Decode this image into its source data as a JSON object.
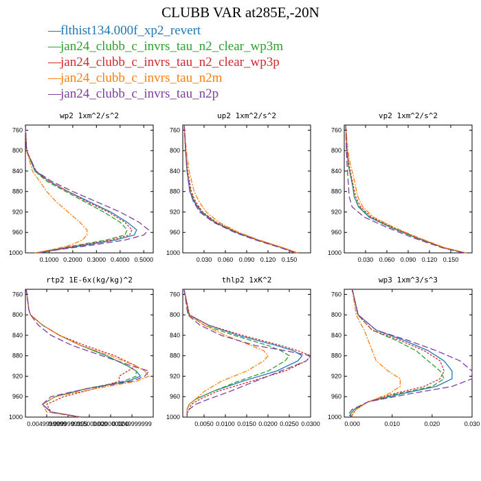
{
  "figure": {
    "title": "CLUBB VAR at285E,-20N",
    "legend": [
      {
        "name": "flthist134.000f_xp2_revert",
        "color": "#1f77b4",
        "dash": ""
      },
      {
        "name": "jan24_clubb_c_invrs_tau_n2_clear_wp3m",
        "color": "#2ca02c",
        "dash": "7,3"
      },
      {
        "name": "jan24_clubb_c_invrs_tau_n2_clear_wp3p",
        "color": "#d62728",
        "dash": "3,2"
      },
      {
        "name": "jan24_clubb_c_invrs_tau_n2m",
        "color": "#ff7f0e",
        "dash": "7,2,2,2"
      },
      {
        "name": "jan24_clubb_c_invrs_tau_n2p",
        "color": "#7b3fa0",
        "dash": "9,4"
      }
    ]
  },
  "chart_data": [
    {
      "type": "line",
      "title": "wp2  1xm^2/s^2",
      "xlim": [
        0,
        0.54
      ],
      "ylim": [
        1000,
        750
      ],
      "xticks": [
        "0.1000",
        "0.2000",
        "0.3000",
        "0.4000",
        "0.5000"
      ],
      "xtick_values": [
        0.1,
        0.2,
        0.3,
        0.4,
        0.5
      ],
      "yticks": [
        760,
        800,
        840,
        880,
        920,
        960,
        1000
      ],
      "y": [
        750,
        800,
        840,
        860,
        880,
        900,
        920,
        940,
        955,
        965,
        975,
        985,
        993,
        1000
      ],
      "series": [
        {
          "name": "flthist134.000f_xp2_revert",
          "values": [
            0,
            0.005,
            0.04,
            0.1,
            0.18,
            0.27,
            0.36,
            0.43,
            0.47,
            0.46,
            0.38,
            0.25,
            0.14,
            0.06
          ]
        },
        {
          "name": "jan24_clubb_c_invrs_tau_n2_clear_wp3m",
          "values": [
            0,
            0.005,
            0.04,
            0.09,
            0.17,
            0.25,
            0.33,
            0.4,
            0.43,
            0.42,
            0.34,
            0.22,
            0.12,
            0.05
          ]
        },
        {
          "name": "jan24_clubb_c_invrs_tau_n2_clear_wp3p",
          "values": [
            0,
            0.005,
            0.045,
            0.1,
            0.18,
            0.26,
            0.35,
            0.42,
            0.45,
            0.44,
            0.36,
            0.23,
            0.13,
            0.05
          ]
        },
        {
          "name": "jan24_clubb_c_invrs_tau_n2m",
          "values": [
            0,
            0.005,
            0.03,
            0.06,
            0.09,
            0.13,
            0.18,
            0.23,
            0.26,
            0.26,
            0.24,
            0.19,
            0.12,
            0.04
          ]
        },
        {
          "name": "jan24_clubb_c_invrs_tau_n2p",
          "values": [
            0,
            0.005,
            0.045,
            0.11,
            0.2,
            0.3,
            0.4,
            0.48,
            0.52,
            0.5,
            0.42,
            0.28,
            0.15,
            0.06
          ]
        }
      ]
    },
    {
      "type": "line",
      "title": "up2  1xm^2/s^2",
      "xlim": [
        0,
        0.18
      ],
      "ylim": [
        1000,
        750
      ],
      "xticks": [
        "0.030",
        "0.060",
        "0.090",
        "0.120",
        "0.150"
      ],
      "xtick_values": [
        0.03,
        0.06,
        0.09,
        0.12,
        0.15
      ],
      "yticks": [
        760,
        800,
        840,
        880,
        920,
        960,
        1000
      ],
      "y": [
        750,
        800,
        840,
        880,
        900,
        920,
        940,
        960,
        975,
        990,
        1000
      ],
      "series": [
        {
          "name": "flthist134.000f_xp2_revert",
          "values": [
            0.002,
            0.004,
            0.006,
            0.01,
            0.016,
            0.026,
            0.045,
            0.075,
            0.105,
            0.14,
            0.16
          ]
        },
        {
          "name": "jan24_clubb_c_invrs_tau_n2_clear_wp3m",
          "values": [
            0.002,
            0.004,
            0.006,
            0.011,
            0.017,
            0.027,
            0.046,
            0.076,
            0.106,
            0.14,
            0.16
          ]
        },
        {
          "name": "jan24_clubb_c_invrs_tau_n2_clear_wp3p",
          "values": [
            0.002,
            0.004,
            0.007,
            0.012,
            0.018,
            0.028,
            0.047,
            0.077,
            0.107,
            0.141,
            0.161
          ]
        },
        {
          "name": "jan24_clubb_c_invrs_tau_n2m",
          "values": [
            0.002,
            0.005,
            0.009,
            0.016,
            0.023,
            0.033,
            0.051,
            0.079,
            0.108,
            0.142,
            0.162
          ]
        },
        {
          "name": "jan24_clubb_c_invrs_tau_n2p",
          "values": [
            0.002,
            0.004,
            0.006,
            0.01,
            0.015,
            0.024,
            0.043,
            0.073,
            0.103,
            0.138,
            0.158
          ]
        }
      ]
    },
    {
      "type": "line",
      "title": "vp2  1xm^2/s^2",
      "xlim": [
        0,
        0.18
      ],
      "ylim": [
        1000,
        750
      ],
      "xticks": [
        "0.030",
        "0.060",
        "0.090",
        "0.120",
        "0.150"
      ],
      "xtick_values": [
        0.03,
        0.06,
        0.09,
        0.12,
        0.15
      ],
      "yticks": [
        760,
        800,
        840,
        880,
        920,
        960,
        1000
      ],
      "y": [
        750,
        800,
        830,
        850,
        870,
        890,
        910,
        930,
        950,
        970,
        990,
        1000
      ],
      "series": [
        {
          "name": "flthist134.000f_xp2_revert",
          "values": [
            0.002,
            0.004,
            0.006,
            0.009,
            0.012,
            0.014,
            0.02,
            0.035,
            0.065,
            0.1,
            0.14,
            0.17
          ]
        },
        {
          "name": "jan24_clubb_c_invrs_tau_n2_clear_wp3m",
          "values": [
            0.002,
            0.004,
            0.006,
            0.009,
            0.012,
            0.014,
            0.021,
            0.036,
            0.066,
            0.101,
            0.14,
            0.17
          ]
        },
        {
          "name": "jan24_clubb_c_invrs_tau_n2_clear_wp3p",
          "values": [
            0.002,
            0.004,
            0.007,
            0.01,
            0.013,
            0.016,
            0.023,
            0.038,
            0.068,
            0.102,
            0.141,
            0.171
          ]
        },
        {
          "name": "jan24_clubb_c_invrs_tau_n2m",
          "values": [
            0.002,
            0.005,
            0.009,
            0.013,
            0.016,
            0.019,
            0.026,
            0.041,
            0.07,
            0.104,
            0.142,
            0.172
          ]
        },
        {
          "name": "jan24_clubb_c_invrs_tau_n2p",
          "values": [
            0.002,
            0.003,
            0.004,
            0.005,
            0.006,
            0.007,
            0.011,
            0.028,
            0.06,
            0.096,
            0.138,
            0.168
          ]
        }
      ]
    },
    {
      "type": "line",
      "title": "rtp2  1E-6x(kg/kg)^2",
      "xlim": [
        0,
        0.03
      ],
      "ylim": [
        1000,
        750
      ],
      "xticks": [
        "0.0049999999",
        "0.0099999999",
        "0.015000000",
        "0.020000000",
        "0.0249999999"
      ],
      "xtick_values": [
        0.005,
        0.01,
        0.015,
        0.02,
        0.025
      ],
      "yticks": [
        760,
        800,
        840,
        880,
        920,
        960,
        1000
      ],
      "y": [
        750,
        790,
        800,
        820,
        840,
        860,
        880,
        900,
        910,
        920,
        930,
        945,
        960,
        975,
        990,
        1000
      ],
      "series": [
        {
          "name": "flthist134.000f_xp2_revert",
          "values": [
            0.0002,
            0.0008,
            0.0012,
            0.004,
            0.008,
            0.013,
            0.019,
            0.024,
            0.026,
            0.027,
            0.024,
            0.014,
            0.007,
            0.004,
            0.006,
            0.013
          ]
        },
        {
          "name": "jan24_clubb_c_invrs_tau_n2_clear_wp3m",
          "values": [
            0.0002,
            0.0008,
            0.0012,
            0.004,
            0.008,
            0.013,
            0.019,
            0.024,
            0.026,
            0.026,
            0.023,
            0.014,
            0.007,
            0.004,
            0.006,
            0.013
          ]
        },
        {
          "name": "jan24_clubb_c_invrs_tau_n2_clear_wp3p",
          "values": [
            0.0002,
            0.0008,
            0.0012,
            0.004,
            0.008,
            0.014,
            0.021,
            0.026,
            0.024,
            0.022,
            0.022,
            0.016,
            0.009,
            0.005,
            0.006,
            0.013
          ]
        },
        {
          "name": "jan24_clubb_c_invrs_tau_n2m",
          "values": [
            0.0002,
            0.0008,
            0.0012,
            0.004,
            0.008,
            0.013,
            0.02,
            0.026,
            0.028,
            0.029,
            0.026,
            0.016,
            0.007,
            0.004,
            0.005,
            0.013
          ]
        },
        {
          "name": "jan24_clubb_c_invrs_tau_n2p",
          "values": [
            0.0002,
            0.0008,
            0.0012,
            0.003,
            0.006,
            0.011,
            0.018,
            0.025,
            0.029,
            0.028,
            0.025,
            0.014,
            0.006,
            0.004,
            0.006,
            0.013
          ]
        }
      ]
    },
    {
      "type": "line",
      "title": "thlp2  1xK^2",
      "xlim": [
        0,
        0.03
      ],
      "ylim": [
        1000,
        750
      ],
      "xticks": [
        "0.0050",
        "0.0100",
        "0.0150",
        "0.0200",
        "0.0250",
        "0.0300"
      ],
      "xtick_values": [
        0.005,
        0.01,
        0.015,
        0.02,
        0.025,
        0.03
      ],
      "yticks": [
        760,
        800,
        840,
        880,
        920,
        960,
        1000
      ],
      "y": [
        750,
        800,
        820,
        840,
        860,
        870,
        880,
        890,
        910,
        930,
        950,
        965,
        975,
        985,
        993,
        1000
      ],
      "series": [
        {
          "name": "flthist134.000f_xp2_revert",
          "values": [
            0.0003,
            0.0015,
            0.006,
            0.013,
            0.022,
            0.026,
            0.028,
            0.027,
            0.022,
            0.014,
            0.007,
            0.003,
            0.0015,
            0.001,
            0.001,
            0.001
          ]
        },
        {
          "name": "jan24_clubb_c_invrs_tau_n2_clear_wp3m",
          "values": [
            0.0003,
            0.0014,
            0.005,
            0.012,
            0.02,
            0.023,
            0.025,
            0.024,
            0.02,
            0.013,
            0.007,
            0.003,
            0.0015,
            0.001,
            0.001,
            0.001
          ]
        },
        {
          "name": "jan24_clubb_c_invrs_tau_n2_clear_wp3p",
          "values": [
            0.0003,
            0.0016,
            0.006,
            0.014,
            0.023,
            0.027,
            0.03,
            0.029,
            0.024,
            0.016,
            0.008,
            0.004,
            0.002,
            0.0015,
            0.001,
            0.001
          ]
        },
        {
          "name": "jan24_clubb_c_invrs_tau_n2m",
          "values": [
            0.0003,
            0.0013,
            0.005,
            0.01,
            0.016,
            0.019,
            0.02,
            0.019,
            0.015,
            0.009,
            0.005,
            0.003,
            0.0015,
            0.001,
            0.001,
            0.001
          ]
        },
        {
          "name": "jan24_clubb_c_invrs_tau_n2p",
          "values": [
            0.0003,
            0.0012,
            0.004,
            0.009,
            0.017,
            0.024,
            0.03,
            0.029,
            0.023,
            0.017,
            0.011,
            0.006,
            0.003,
            0.0015,
            0.001,
            0.001
          ]
        }
      ]
    },
    {
      "type": "line",
      "title": "wp3  1xm^3/s^3",
      "xlim": [
        -0.002,
        0.03
      ],
      "ylim": [
        1000,
        750
      ],
      "xticks": [
        "0.000",
        "0.010",
        "0.020",
        "0.030"
      ],
      "xtick_values": [
        0,
        0.01,
        0.02,
        0.03
      ],
      "yticks": [
        760,
        800,
        840,
        880,
        920,
        960,
        1000
      ],
      "y": [
        750,
        800,
        830,
        850,
        870,
        890,
        910,
        925,
        940,
        955,
        970,
        985,
        995,
        1000
      ],
      "series": [
        {
          "name": "flthist134.000f_xp2_revert",
          "values": [
            0,
            0.0015,
            0.006,
            0.013,
            0.019,
            0.023,
            0.025,
            0.025,
            0.021,
            0.012,
            0.004,
            0.0005,
            -0.0005,
            0
          ]
        },
        {
          "name": "jan24_clubb_c_invrs_tau_n2_clear_wp3m",
          "values": [
            0,
            0.0014,
            0.005,
            0.011,
            0.016,
            0.019,
            0.022,
            0.023,
            0.02,
            0.011,
            0.004,
            0.0005,
            -0.0005,
            0
          ]
        },
        {
          "name": "jan24_clubb_c_invrs_tau_n2_clear_wp3p",
          "values": [
            0,
            0.0014,
            0.005,
            0.012,
            0.018,
            0.022,
            0.023,
            0.022,
            0.018,
            0.01,
            0.004,
            0.001,
            0,
            0
          ]
        },
        {
          "name": "jan24_clubb_c_invrs_tau_n2m",
          "values": [
            0,
            0.001,
            0.003,
            0.004,
            0.005,
            0.006,
            0.009,
            0.012,
            0.012,
            0.009,
            0.004,
            0.001,
            0,
            0
          ]
        },
        {
          "name": "jan24_clubb_c_invrs_tau_n2p",
          "values": [
            0,
            0.0015,
            0.006,
            0.014,
            0.021,
            0.027,
            0.03,
            0.03,
            0.025,
            0.014,
            0.004,
            0,
            -0.001,
            0
          ]
        }
      ]
    }
  ]
}
